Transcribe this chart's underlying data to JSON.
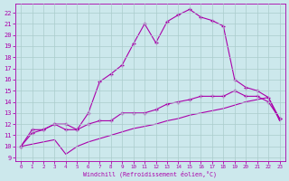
{
  "xlabel": "Windchill (Refroidissement éolien,°C)",
  "bg_color": "#cce8ec",
  "grid_color": "#aacccc",
  "line_color": "#aa00aa",
  "xlim": [
    -0.5,
    23.5
  ],
  "ylim": [
    8.7,
    22.8
  ],
  "xticks": [
    0,
    1,
    2,
    3,
    4,
    5,
    6,
    7,
    8,
    9,
    10,
    11,
    12,
    13,
    14,
    15,
    16,
    17,
    18,
    19,
    20,
    21,
    22,
    23
  ],
  "yticks": [
    9,
    10,
    11,
    12,
    13,
    14,
    15,
    16,
    17,
    18,
    19,
    20,
    21,
    22
  ],
  "upper_x": [
    0,
    1,
    2,
    3,
    4,
    5,
    6,
    7,
    8,
    9,
    10,
    11,
    12,
    13,
    14,
    15,
    16,
    17,
    18,
    19,
    20,
    21,
    22,
    23
  ],
  "upper_y": [
    10.0,
    11.5,
    11.5,
    12.0,
    11.5,
    11.5,
    13.0,
    15.8,
    16.5,
    17.3,
    19.2,
    21.0,
    19.3,
    21.2,
    21.8,
    22.3,
    21.6,
    21.3,
    20.8,
    16.0,
    15.3,
    15.0,
    14.4,
    12.5
  ],
  "mid_x": [
    0,
    1,
    2,
    3,
    4,
    5,
    6,
    7,
    8,
    9,
    10,
    11,
    12,
    13,
    14,
    15,
    16,
    17,
    18,
    19,
    20,
    21,
    22,
    23
  ],
  "mid_y": [
    10.0,
    11.2,
    11.5,
    12.0,
    12.0,
    11.5,
    12.0,
    12.3,
    12.3,
    13.0,
    13.0,
    13.0,
    13.3,
    13.8,
    14.0,
    14.2,
    14.5,
    14.5,
    14.5,
    15.0,
    14.5,
    14.5,
    14.0,
    12.5
  ],
  "low_x": [
    0,
    1,
    2,
    3,
    4,
    5,
    6,
    7,
    8,
    9,
    10,
    11,
    12,
    13,
    14,
    15,
    16,
    17,
    18,
    19,
    20,
    21,
    22,
    23
  ],
  "low_y": [
    10.0,
    10.2,
    10.4,
    10.6,
    9.3,
    10.0,
    10.4,
    10.7,
    11.0,
    11.3,
    11.6,
    11.8,
    12.0,
    12.3,
    12.5,
    12.8,
    13.0,
    13.2,
    13.4,
    13.7,
    14.0,
    14.2,
    14.4,
    12.3
  ]
}
